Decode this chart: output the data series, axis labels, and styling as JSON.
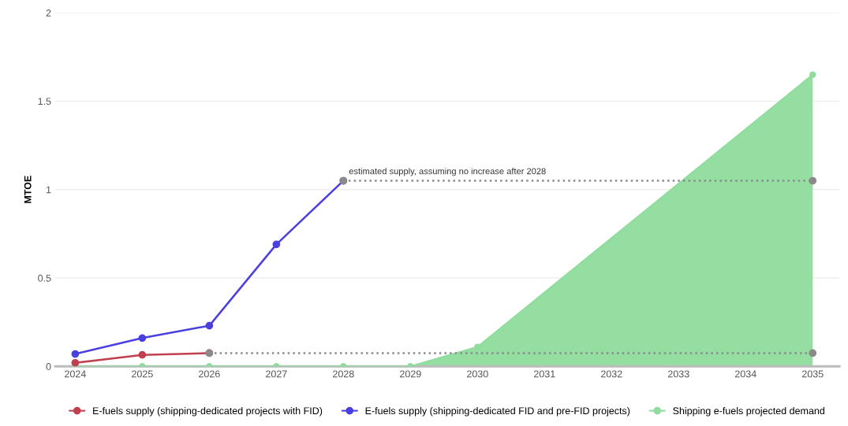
{
  "chart_data": {
    "type": "line",
    "ylabel": "MTOE",
    "xlim": [
      2023.7,
      2035.4
    ],
    "xticks": [
      2024,
      2025,
      2026,
      2027,
      2028,
      2029,
      2030,
      2031,
      2032,
      2033,
      2034,
      2035
    ],
    "ylim": [
      0,
      2
    ],
    "yticks": [
      0,
      0.5,
      1,
      1.5,
      2
    ],
    "grid": "y",
    "legend": "bottom",
    "marker": "circle",
    "series": [
      {
        "name": "E-fuels supply (shipping-dedicated projects with FID)",
        "color": "#c0404f",
        "x": [
          2024,
          2025,
          2026
        ],
        "values": [
          0.02,
          0.065,
          0.075
        ]
      },
      {
        "name": "E-fuels supply (shipping-dedicated FID and pre-FID projects)",
        "color": "#4a3fe0",
        "x": [
          2024,
          2025,
          2026,
          2027,
          2028
        ],
        "values": [
          0.07,
          0.16,
          0.23,
          0.69,
          1.05
        ]
      },
      {
        "name": "Shipping e-fuels projected demand",
        "type": "area",
        "color": "#8fdc9c",
        "x": [
          2024,
          2025,
          2026,
          2027,
          2028,
          2029,
          2030,
          2035
        ],
        "values": [
          0,
          0,
          0,
          0,
          0,
          0,
          0.11,
          1.65
        ]
      },
      {
        "line_style": "dotted",
        "color": "#8a8a8a",
        "x": [
          2026,
          2035
        ],
        "values": [
          0.075,
          0.075
        ]
      },
      {
        "line_style": "dotted",
        "color": "#8a8a8a",
        "x": [
          2028,
          2035
        ],
        "values": [
          1.05,
          1.05
        ]
      }
    ],
    "annotations": [
      {
        "text": "estimated supply, assuming no increase after 2028",
        "x": 2028,
        "y": 1.05
      }
    ]
  }
}
